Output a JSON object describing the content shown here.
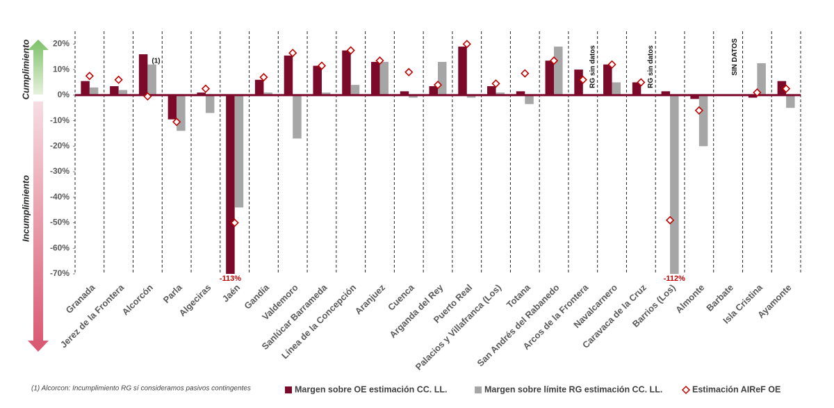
{
  "chart_data": {
    "type": "bar",
    "y_labels": [
      "Cumplimiento",
      "Incumplimiento"
    ],
    "categories": [
      "Granada",
      "Jerez de la Frontera",
      "Alcorcón",
      "Parla",
      "Algeciras",
      "Jaén",
      "Gandía",
      "Valdemoro",
      "Sanlúcar Barrameda",
      "Línea de la Concepción",
      "Aranjuez",
      "Cuenca",
      "Arganda del Rey",
      "Puerto Real",
      "Palacios y Villafranca (Los)",
      "Totana",
      "San Andrés del Rabanedo",
      "Arcos de la Frontera",
      "Navalcarnero",
      "Caravaca de la Cruz",
      "Barrios (Los)",
      "Almonte",
      "Barbate",
      "Isla Cristina",
      "Ayamonte"
    ],
    "series": [
      {
        "name": "Margen sobre OE estimación CC. LL.",
        "color": "#7b0a2a",
        "kind": "bar",
        "values": [
          5.5,
          3.5,
          16,
          -9.5,
          1,
          -113,
          6,
          15.5,
          11.5,
          17.5,
          13,
          1.5,
          3.5,
          19,
          3.5,
          1.5,
          13.5,
          10,
          12,
          5,
          1.5,
          -1.5,
          null,
          -1,
          5.5
        ],
        "value_labels": [
          null,
          null,
          null,
          null,
          null,
          "-113%",
          null,
          null,
          null,
          null,
          null,
          null,
          null,
          null,
          null,
          null,
          null,
          null,
          null,
          null,
          null,
          null,
          null,
          null,
          null
        ]
      },
      {
        "name": "Margen sobre límite RG estimación CC. LL.",
        "color": "#a6a6a6",
        "kind": "bar",
        "values": [
          3,
          2,
          12,
          -14,
          -7,
          -44,
          1,
          -17,
          1,
          4,
          13,
          -1,
          13,
          -1,
          1,
          -3.5,
          19,
          null,
          5,
          null,
          -112,
          -20,
          null,
          12.5,
          -5
        ],
        "value_labels": [
          null,
          null,
          null,
          null,
          null,
          null,
          null,
          null,
          null,
          null,
          null,
          null,
          null,
          null,
          null,
          null,
          null,
          null,
          null,
          null,
          "-112%",
          null,
          null,
          null,
          null
        ]
      },
      {
        "name": "Estimación AIReF OE",
        "color": "#c00000",
        "kind": "diamond",
        "values": [
          7.5,
          6,
          -0.5,
          -10.5,
          2.5,
          -50,
          7,
          16.5,
          11.5,
          17.5,
          13.5,
          9,
          4,
          20,
          4.5,
          8.5,
          13.5,
          6,
          12,
          5,
          -49,
          -6,
          null,
          1,
          2.5
        ]
      }
    ],
    "ylim": [
      -70,
      25
    ],
    "yticks": [
      {
        "value": -70,
        "label": "-70%"
      },
      {
        "value": -60,
        "label": "-60%"
      },
      {
        "value": -50,
        "label": "-50%"
      },
      {
        "value": -40,
        "label": "-40%"
      },
      {
        "value": -30,
        "label": "-30%"
      },
      {
        "value": -20,
        "label": "-20%"
      },
      {
        "value": -10,
        "label": "-10%"
      },
      {
        "value": 0,
        "label": "0%"
      },
      {
        "value": 10,
        "label": "10%"
      },
      {
        "value": 20,
        "label": "20%"
      }
    ],
    "annotations": [
      "(1)",
      "RG sin datos",
      "RG sin datos",
      "SIN DATOS"
    ],
    "footnote": "(1) Alcorcon: Incumplimiento RG sí consideramos pasivos contingentes"
  }
}
